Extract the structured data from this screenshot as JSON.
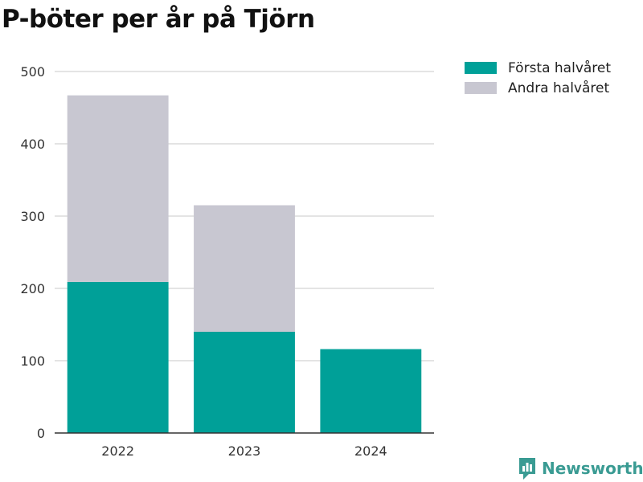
{
  "brand": {
    "name": "Newsworthy",
    "icon": "newsworthy-logo-icon",
    "color": "#3a9b93"
  },
  "chart_data": {
    "type": "bar",
    "stacked": true,
    "title": "P-böter per år på Tjörn",
    "xlabel": "",
    "ylabel": "",
    "categories": [
      "2022",
      "2023",
      "2024"
    ],
    "series": [
      {
        "name": "Första halvåret",
        "color": "#00a098",
        "values": [
          209,
          140,
          116
        ]
      },
      {
        "name": "Andra halvåret",
        "color": "#c8c7d1",
        "values": [
          258,
          175,
          0
        ]
      }
    ],
    "ylim": [
      0,
      500
    ],
    "yticks": [
      0,
      100,
      200,
      300,
      400,
      500
    ],
    "grid": true,
    "legend": "top-right"
  }
}
